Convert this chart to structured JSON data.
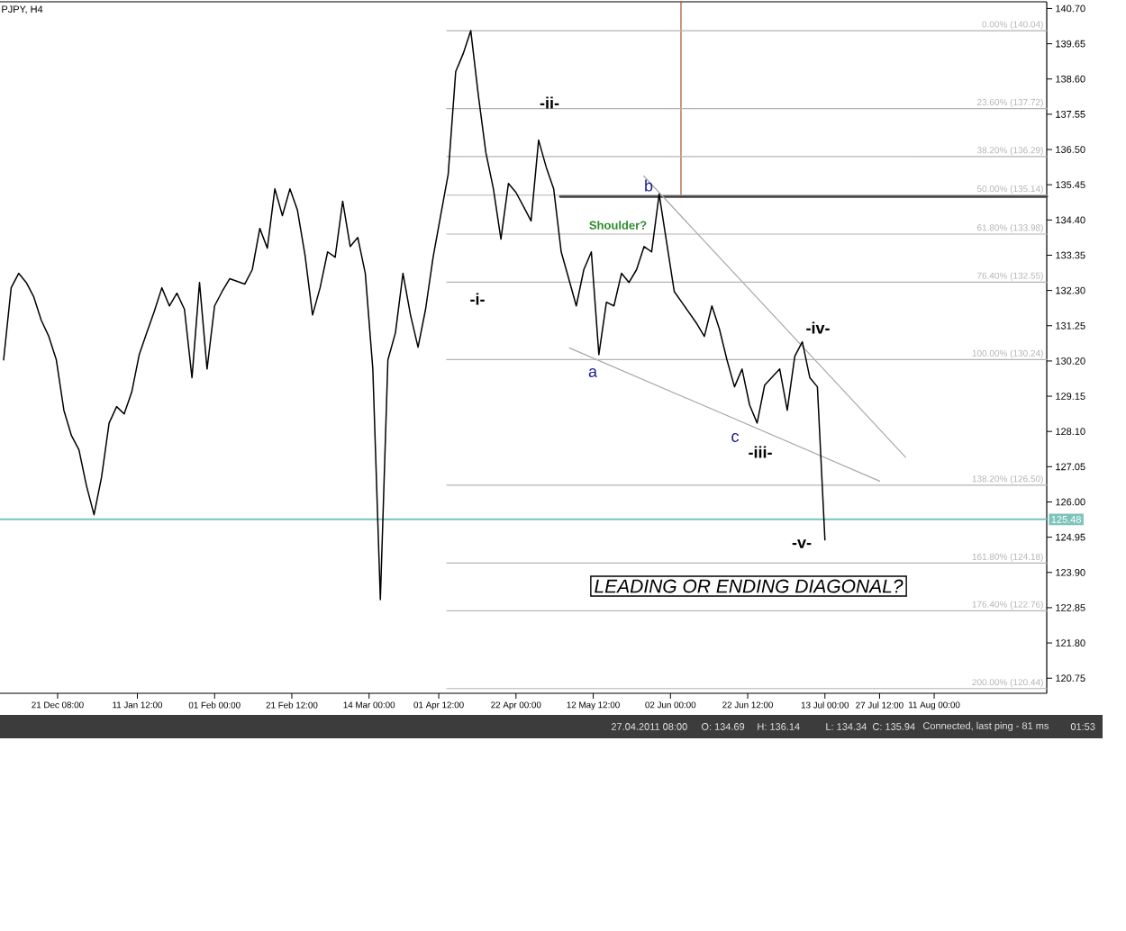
{
  "chart_data": {
    "type": "line",
    "title": "PJPY, H4",
    "xlim": [
      "2010-12-06T01:00",
      "2011-09-09T21:00"
    ],
    "ylim": [
      120.3,
      140.9
    ],
    "xticks": [
      {
        "value": "2010-12-21T08:00",
        "label": "21 Dec 08:00"
      },
      {
        "value": "2011-01-11T12:00",
        "label": "11 Jan 12:00"
      },
      {
        "value": "2011-02-01T00:00",
        "label": "01 Feb 00:00"
      },
      {
        "value": "2011-02-21T12:00",
        "label": "21 Feb 12:00"
      },
      {
        "value": "2011-03-14T00:00",
        "label": "14 Mar 00:00"
      },
      {
        "value": "2011-04-01T12:00",
        "label": "01 Apr 12:00"
      },
      {
        "value": "2011-04-22T00:00",
        "label": "22 Apr 00:00"
      },
      {
        "value": "2011-05-12T12:00",
        "label": "12 May 12:00"
      },
      {
        "value": "2011-06-02T00:00",
        "label": "02 Jun 00:00"
      },
      {
        "value": "2011-06-22T12:00",
        "label": "22 Jun 12:00"
      },
      {
        "value": "2011-07-13T00:00",
        "label": "13 Jul 00:00"
      },
      {
        "value": "2011-07-27T12:00",
        "label": "27 Jul 12:00"
      },
      {
        "value": "2011-08-11T00:00",
        "label": "11 Aug 00:00"
      }
    ],
    "yticks": [
      {
        "value": 140.7,
        "label": "140.70"
      },
      139.65,
      {
        "value": 138.6,
        "label": "138.60"
      },
      137.55,
      {
        "value": 136.5,
        "label": "136.50"
      },
      135.45,
      {
        "value": 134.4,
        "label": "134.40"
      },
      133.35,
      {
        "value": 132.3,
        "label": "132.30"
      },
      131.25,
      {
        "value": 130.2,
        "label": "130.20"
      },
      129.15,
      {
        "value": 128.1,
        "label": "128.10"
      },
      127.05,
      {
        "value": 126.0,
        "label": "126.00"
      },
      124.95,
      {
        "value": 123.9,
        "label": "123.90"
      },
      122.85,
      {
        "value": 121.8,
        "label": "121.80"
      },
      120.75
    ],
    "series": [
      {
        "type": "line",
        "color": "#000000",
        "x": [
          "2010-12-07",
          "2010-12-09",
          "2010-12-11",
          "2010-12-13",
          "2010-12-15",
          "2010-12-17",
          "2010-12-19",
          "2010-12-21",
          "2010-12-23",
          "2010-12-25",
          "2010-12-27",
          "2010-12-29",
          "2010-12-31",
          "2011-01-02",
          "2011-01-04",
          "2011-01-06",
          "2011-01-08",
          "2011-01-10",
          "2011-01-12",
          "2011-01-14",
          "2011-01-16",
          "2011-01-18",
          "2011-01-20",
          "2011-01-22",
          "2011-01-24",
          "2011-01-26",
          "2011-01-28",
          "2011-01-30",
          "2011-02-01",
          "2011-02-03",
          "2011-02-05",
          "2011-02-07",
          "2011-02-09",
          "2011-02-11",
          "2011-02-13",
          "2011-02-15",
          "2011-02-17",
          "2011-02-19",
          "2011-02-21",
          "2011-02-23",
          "2011-02-25",
          "2011-02-27",
          "2011-03-01",
          "2011-03-03",
          "2011-03-05",
          "2011-03-07",
          "2011-03-09",
          "2011-03-11",
          "2011-03-13",
          "2011-03-15",
          "2011-03-17",
          "2011-03-19",
          "2011-03-21",
          "2011-03-23",
          "2011-03-25",
          "2011-03-27",
          "2011-03-29",
          "2011-03-31",
          "2011-04-02",
          "2011-04-04",
          "2011-04-06",
          "2011-04-08",
          "2011-04-10",
          "2011-04-12",
          "2011-04-14",
          "2011-04-16",
          "2011-04-18",
          "2011-04-20",
          "2011-04-22",
          "2011-04-24",
          "2011-04-26",
          "2011-04-28",
          "2011-04-30",
          "2011-05-02",
          "2011-05-04",
          "2011-05-06",
          "2011-05-08",
          "2011-05-10",
          "2011-05-12",
          "2011-05-14",
          "2011-05-16",
          "2011-05-18",
          "2011-05-20",
          "2011-05-22",
          "2011-05-24",
          "2011-05-26",
          "2011-05-28",
          "2011-05-30",
          "2011-06-01",
          "2011-06-03",
          "2011-06-05",
          "2011-06-07",
          "2011-06-09",
          "2011-06-11",
          "2011-06-13",
          "2011-06-15",
          "2011-06-17",
          "2011-06-19",
          "2011-06-21",
          "2011-06-23",
          "2011-06-25",
          "2011-06-27",
          "2011-06-29",
          "2011-07-01",
          "2011-07-03",
          "2011-07-05",
          "2011-07-07",
          "2011-07-09",
          "2011-07-11",
          "2011-07-13"
        ],
        "values": [
          130.23,
          132.38,
          132.81,
          132.54,
          132.11,
          131.41,
          130.93,
          130.23,
          128.73,
          127.98,
          127.55,
          126.48,
          125.62,
          126.74,
          128.35,
          128.84,
          128.62,
          129.27,
          130.39,
          131.04,
          131.68,
          132.38,
          131.84,
          132.22,
          131.74,
          129.7,
          132.54,
          129.96,
          131.84,
          132.27,
          132.65,
          132.57,
          132.49,
          132.92,
          134.15,
          133.56,
          135.33,
          134.53,
          135.33,
          134.69,
          133.35,
          131.57,
          132.38,
          133.45,
          133.29,
          134.96,
          133.61,
          133.88,
          132.81,
          129.96,
          123.09,
          130.23,
          131.04,
          132.81,
          131.57,
          130.61,
          131.74,
          133.29,
          134.53,
          135.76,
          138.82,
          139.36,
          140.04,
          138.12,
          136.41,
          135.33,
          133.83,
          135.49,
          135.22,
          134.8,
          134.37,
          136.78,
          135.98,
          135.33,
          133.45,
          132.65,
          131.84,
          132.92,
          133.45,
          130.39,
          131.95,
          131.84,
          132.81,
          132.54,
          132.92,
          133.61,
          133.45,
          135.17,
          133.72,
          132.27,
          131.95,
          131.63,
          131.31,
          130.93,
          131.84,
          131.15,
          130.23,
          129.43,
          129.96,
          128.89,
          128.35,
          129.48,
          129.72,
          129.96,
          128.73,
          130.34,
          130.77,
          129.7,
          129.43,
          124.87
        ]
      },
      {
        "name": "0.00% (140.04)",
        "type": "line",
        "color": "#b4b4b4",
        "x": [
          "2011-04-03T15:00",
          "2011-09-09T21:00"
        ],
        "values": [
          140.04,
          140.04
        ]
      },
      {
        "name": "23.60% (137.72)",
        "type": "line",
        "color": "#b4b4b4",
        "x": [
          "2011-04-03T15:00",
          "2011-09-09T21:00"
        ],
        "values": [
          137.72,
          137.72
        ]
      },
      {
        "name": "38.20% (136.29)",
        "type": "line",
        "color": "#b4b4b4",
        "x": [
          "2011-04-03T15:00",
          "2011-09-09T21:00"
        ],
        "values": [
          136.29,
          136.29
        ]
      },
      {
        "name": "50.00% (135.14)",
        "type": "line",
        "color": "#b4b4b4",
        "x": [
          "2011-04-03T15:00",
          "2011-09-09T21:00"
        ],
        "values": [
          135.14,
          135.14
        ]
      },
      {
        "name": "61.80% (133.98)",
        "type": "line",
        "color": "#b4b4b4",
        "x": [
          "2011-04-03T15:00",
          "2011-09-09T21:00"
        ],
        "values": [
          133.98,
          133.98
        ]
      },
      {
        "name": "76.40% (132.55)",
        "type": "line",
        "color": "#b4b4b4",
        "x": [
          "2011-04-03T15:00",
          "2011-09-09T21:00"
        ],
        "values": [
          132.55,
          132.55
        ]
      },
      {
        "name": "100.00% (130.24)",
        "type": "line",
        "color": "#b4b4b4",
        "x": [
          "2011-04-03T15:00",
          "2011-09-09T21:00"
        ],
        "values": [
          130.24,
          130.24
        ]
      },
      {
        "name": "138.20% (126.50)",
        "type": "line",
        "color": "#b4b4b4",
        "x": [
          "2011-04-03T15:00",
          "2011-09-09T21:00"
        ],
        "values": [
          126.5,
          126.5
        ]
      },
      {
        "name": "161.80% (124.18)",
        "type": "line",
        "color": "#b4b4b4",
        "x": [
          "2011-04-03T15:00",
          "2011-09-09T21:00"
        ],
        "values": [
          124.18,
          124.18
        ]
      },
      {
        "name": "176.40% (122.76)",
        "type": "line",
        "color": "#b4b4b4",
        "x": [
          "2011-04-03T15:00",
          "2011-09-09T21:00"
        ],
        "values": [
          122.76,
          122.76
        ]
      },
      {
        "name": "200.00% (120.44)",
        "type": "line",
        "color": "#b4b4b4",
        "x": [
          "2011-04-03T15:00",
          "2011-09-09T21:00"
        ],
        "values": [
          120.44,
          120.44
        ]
      },
      {
        "type": "line",
        "color": "#a8a8a8",
        "x": [
          "2011-05-25T22:00",
          "2011-08-03T10:00"
        ],
        "values": [
          135.71,
          127.33
        ]
      },
      {
        "type": "line",
        "color": "#a8a8a8",
        "x": [
          "2011-05-06T04:00",
          "2011-07-27T13:00"
        ],
        "values": [
          130.59,
          126.62
        ]
      },
      {
        "type": "line",
        "color": "#404040",
        "x": [
          "2011-05-03T18:00",
          "2011-09-09T21:00"
        ],
        "values": [
          135.1,
          135.1
        ]
      },
      {
        "type": "line",
        "color": "#a0522d",
        "x": [
          "2011-06-04T19:00",
          "2011-06-04T19:00"
        ],
        "values": [
          135.1,
          140.9
        ]
      }
    ],
    "ref_lines": [
      {
        "axis": "y",
        "value": 125.48,
        "label": "125.48",
        "color": "#7cc4bb"
      }
    ],
    "annotations": [
      "-i-",
      "-ii-",
      "Shoulder?",
      "b",
      "a",
      "c",
      "-iii-",
      "-iv-",
      "-v-",
      "LEADING OR ENDING DIAGONAL?",
      "27.04.2011 08:00",
      "O: 134.69",
      "H: 136.14",
      "L: 134.34",
      "C: 135.94",
      "Connected, last ping - 81 ms",
      "01:53"
    ]
  }
}
